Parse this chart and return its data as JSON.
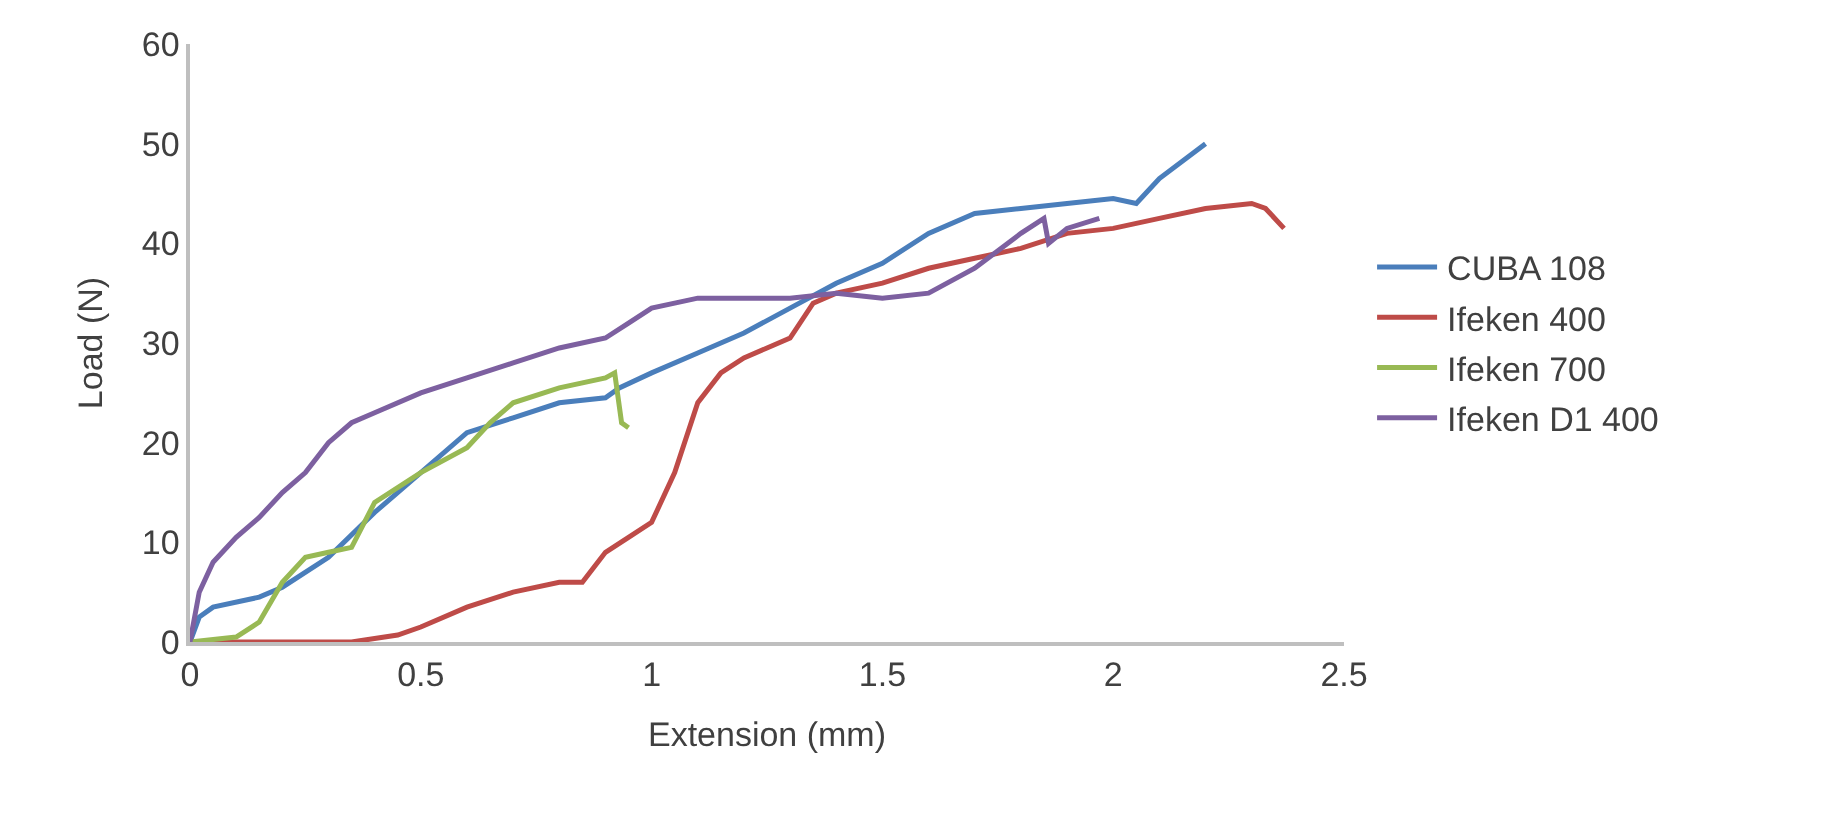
{
  "chart_data": {
    "type": "line",
    "xlabel": "Extension (mm)",
    "ylabel": "Load (N)",
    "xlim": [
      0,
      2.5
    ],
    "xticks": [
      0,
      0.5,
      1,
      1.5,
      2,
      2.5
    ],
    "ylim": [
      0,
      60
    ],
    "yticks": [
      0,
      10,
      20,
      30,
      40,
      50,
      60
    ],
    "grid": false,
    "legend": "right",
    "marker": "none",
    "series": [
      {
        "name": "CUBA 108",
        "color": "#4a7ebb",
        "x": [
          0,
          0.02,
          0.05,
          0.15,
          0.2,
          0.3,
          0.4,
          0.5,
          0.6,
          0.7,
          0.8,
          0.9,
          0.93,
          1.0,
          1.1,
          1.2,
          1.3,
          1.4,
          1.5,
          1.6,
          1.7,
          1.8,
          1.9,
          2.0,
          2.05,
          2.1,
          2.2
        ],
        "values": [
          0,
          2.5,
          3.5,
          4.5,
          5.5,
          8.5,
          13,
          17,
          21,
          22.5,
          24,
          24.5,
          25.5,
          27,
          29,
          31,
          33.5,
          36,
          38,
          41,
          43,
          43.5,
          44,
          44.5,
          44,
          46.5,
          50
        ]
      },
      {
        "name": "Ifeken 400",
        "color": "#be4b48",
        "x": [
          0,
          0.2,
          0.35,
          0.45,
          0.5,
          0.6,
          0.7,
          0.8,
          0.85,
          0.9,
          0.95,
          1.0,
          1.05,
          1.1,
          1.15,
          1.2,
          1.25,
          1.3,
          1.35,
          1.4,
          1.5,
          1.6,
          1.7,
          1.8,
          1.9,
          2.0,
          2.1,
          2.2,
          2.3,
          2.33,
          2.37
        ],
        "values": [
          0,
          0,
          0,
          0.7,
          1.5,
          3.5,
          5,
          6,
          6,
          9,
          10.5,
          12,
          17,
          24,
          27,
          28.5,
          29.5,
          30.5,
          34,
          35,
          36,
          37.5,
          38.5,
          39.5,
          41,
          41.5,
          42.5,
          43.5,
          44,
          43.5,
          41.5
        ]
      },
      {
        "name": "Ifeken 700",
        "color": "#98b954",
        "x": [
          0,
          0.1,
          0.15,
          0.2,
          0.25,
          0.3,
          0.35,
          0.4,
          0.5,
          0.6,
          0.65,
          0.7,
          0.8,
          0.9,
          0.92,
          0.935,
          0.95
        ],
        "values": [
          0,
          0.5,
          2,
          6,
          8.5,
          9,
          9.5,
          14,
          17,
          19.5,
          22,
          24,
          25.5,
          26.5,
          27,
          22,
          21.5
        ]
      },
      {
        "name": "Ifeken D1 400",
        "color": "#7d60a0",
        "x": [
          0,
          0.02,
          0.05,
          0.1,
          0.15,
          0.2,
          0.25,
          0.3,
          0.35,
          0.4,
          0.5,
          0.6,
          0.7,
          0.8,
          0.9,
          0.95,
          1.0,
          1.1,
          1.2,
          1.3,
          1.4,
          1.5,
          1.6,
          1.7,
          1.8,
          1.85,
          1.86,
          1.9,
          1.97
        ],
        "values": [
          0,
          5,
          8,
          10.5,
          12.5,
          15,
          17,
          20,
          22,
          23,
          25,
          26.5,
          28,
          29.5,
          30.5,
          32,
          33.5,
          34.5,
          34.5,
          34.5,
          35,
          34.5,
          35,
          37.5,
          41,
          42.5,
          40,
          41.5,
          42.5
        ]
      }
    ]
  }
}
